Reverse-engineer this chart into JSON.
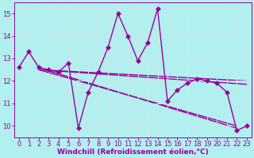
{
  "x": [
    0,
    1,
    2,
    3,
    4,
    5,
    6,
    7,
    8,
    9,
    10,
    11,
    12,
    13,
    14,
    15,
    16,
    17,
    18,
    19,
    20,
    21,
    22,
    23
  ],
  "y": [
    12.6,
    13.3,
    12.6,
    12.5,
    12.4,
    12.8,
    9.9,
    11.5,
    12.4,
    13.5,
    15.0,
    14.0,
    12.9,
    13.7,
    15.2,
    11.1,
    11.6,
    11.9,
    12.1,
    12.0,
    11.9,
    11.5,
    9.8,
    10.0
  ],
  "color": "#990099",
  "background_color": "#b2f0f0",
  "grid_color": "#c8e8e8",
  "xlabel": "Windchill (Refroidissement éolien,°C)",
  "ylim": [
    9.5,
    15.5
  ],
  "xlim": [
    -0.5,
    23.5
  ],
  "yticks": [
    10,
    11,
    12,
    13,
    14,
    15
  ],
  "xticks": [
    0,
    1,
    2,
    3,
    4,
    5,
    6,
    7,
    8,
    9,
    10,
    11,
    12,
    13,
    14,
    15,
    16,
    17,
    18,
    19,
    20,
    21,
    22,
    23
  ],
  "markersize": 3,
  "linewidth": 1.0,
  "xlabel_fontsize": 6.5,
  "tick_fontsize": 6.0,
  "extra_lines": [
    {
      "x": [
        2,
        23
      ],
      "y": [
        12.5,
        12.0
      ]
    },
    {
      "x": [
        2,
        23
      ],
      "y": [
        12.5,
        11.85
      ]
    },
    {
      "x": [
        2,
        22
      ],
      "y": [
        12.5,
        10.0
      ]
    },
    {
      "x": [
        3,
        22
      ],
      "y": [
        12.45,
        9.9
      ]
    }
  ]
}
